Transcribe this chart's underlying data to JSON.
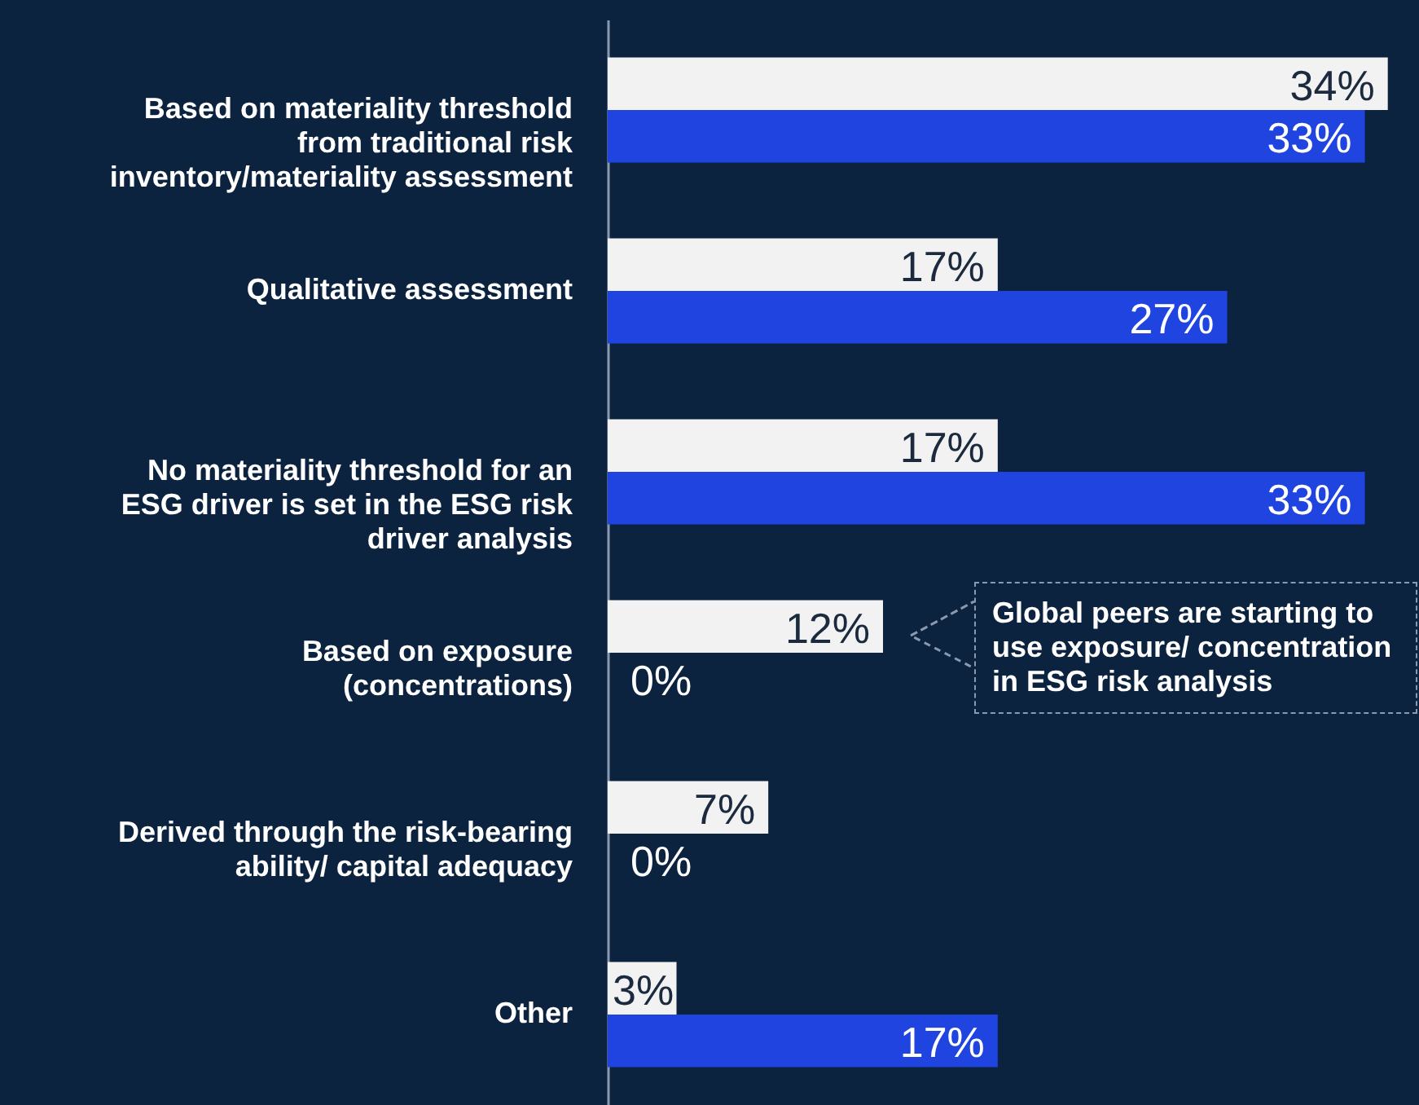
{
  "chart_data": {
    "type": "bar",
    "orientation": "horizontal",
    "categories": [
      "Based on materiality threshold from traditional risk inventory/materiality assessment",
      "Qualitative assessment",
      "No materiality threshold for an ESG driver is set in the ESG risk driver analysis",
      "Based on exposure (concentrations)",
      "Derived through the risk-bearing ability/ capital adequacy",
      "Other"
    ],
    "series": [
      {
        "color": "#f2f2f2",
        "values": [
          34,
          17,
          17,
          12,
          7,
          3
        ],
        "value_labels": [
          "34%",
          "17%",
          "17%",
          "12%",
          "7%",
          "3%"
        ]
      },
      {
        "color": "#1f44e0",
        "values": [
          33,
          27,
          33,
          0,
          0,
          17
        ],
        "value_labels": [
          "33%",
          "27%",
          "33%",
          "0%",
          "0%",
          "17%"
        ]
      }
    ],
    "annotations": [
      "Global peers are starting to use exposure/ concentration in ESG risk analysis"
    ]
  }
}
